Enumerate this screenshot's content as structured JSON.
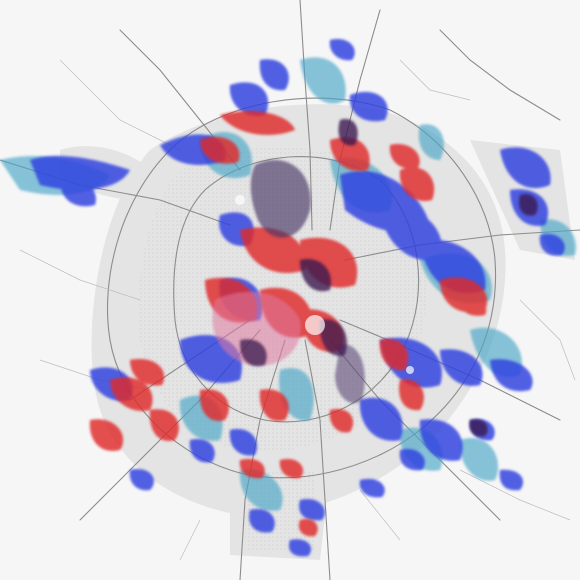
{
  "map": {
    "colors": {
      "background": "#f6f6f6",
      "urban_fill": "#e6e6e6",
      "road": "#8a8a8a",
      "road_minor": "#c2c2c2",
      "red": "#e0292b",
      "blue": "#2e3fe0",
      "cyan": "#4aa6c8",
      "dark": "#3b1850",
      "pink": "#e07aa0"
    },
    "layers": [
      "urban-base",
      "road-network",
      "cyan-density",
      "blue-density",
      "red-density",
      "overlap-core"
    ]
  }
}
